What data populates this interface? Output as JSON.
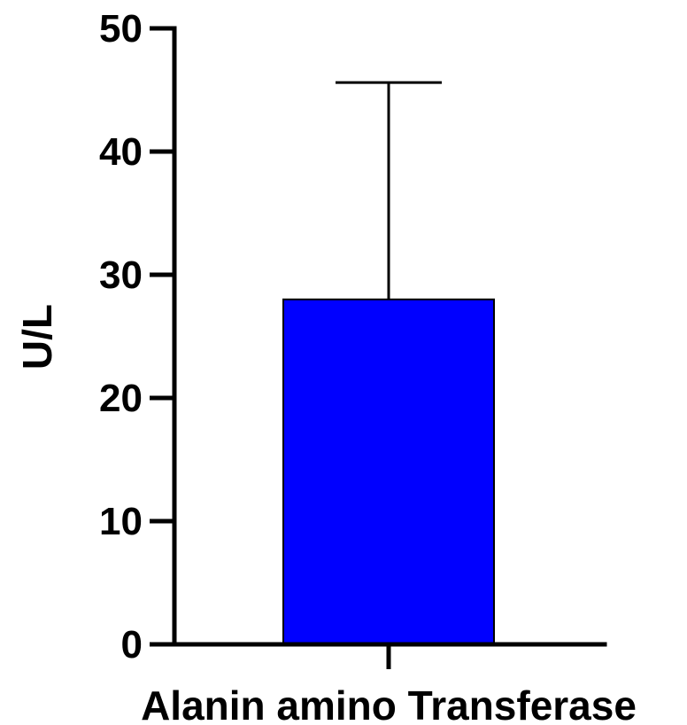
{
  "chart_data": {
    "type": "bar",
    "categories": [
      "Alanin amino Transferase"
    ],
    "values": [
      28
    ],
    "error_upper": [
      45.6
    ],
    "ylabel": "U/L",
    "xlabel": "",
    "ylim": [
      0,
      50
    ],
    "yticks": [
      0,
      10,
      20,
      30,
      40,
      50
    ],
    "bar_color": "#0000FF",
    "grid": false
  }
}
